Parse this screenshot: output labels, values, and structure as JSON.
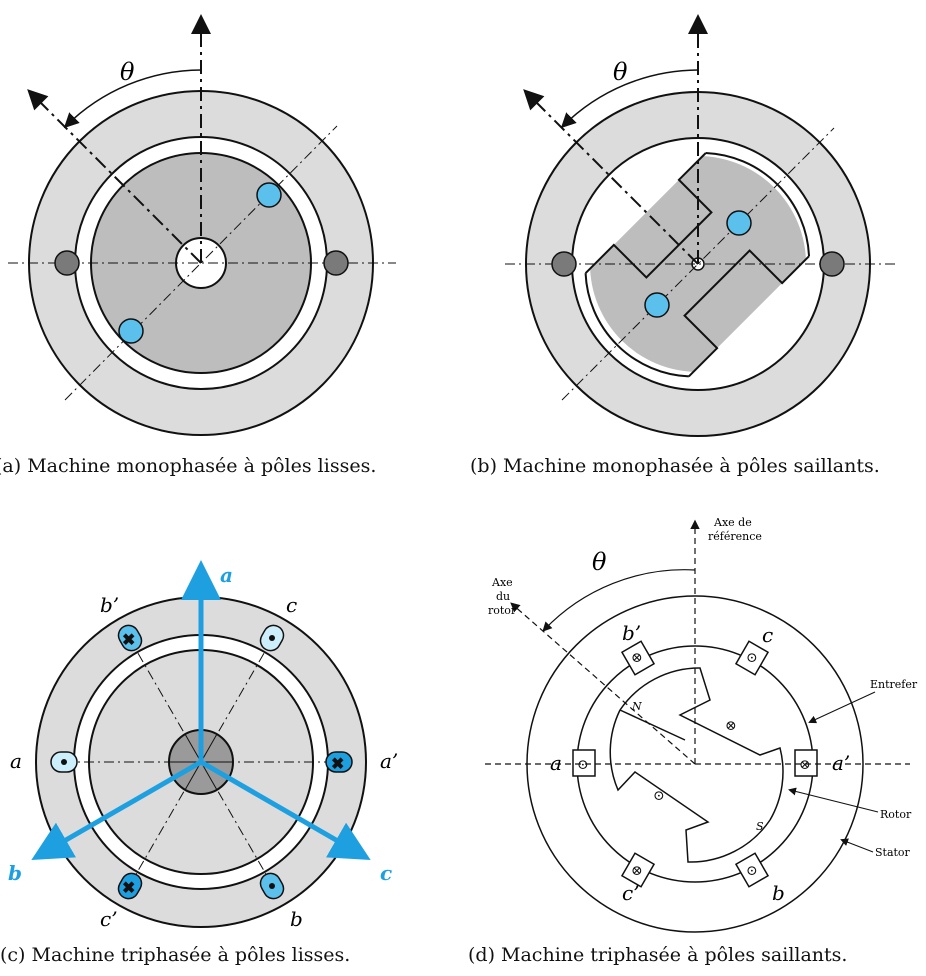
{
  "colors": {
    "stator_fill": "#dcdcdc",
    "rotor_fill": "#bdbdbd",
    "conductor_blue": "#5bc0eb",
    "conductor_gray": "#7a7a7a",
    "axis_blue": "#1ea0e0",
    "stroke": "#1a1a1a"
  },
  "panel_a": {
    "theta_label": "θ",
    "caption": "(a) Machine monophasée à pôles lisses."
  },
  "panel_b": {
    "theta_label": "θ",
    "caption": "(b) Machine monophasée à pôles saillants."
  },
  "panel_c": {
    "labels": {
      "a_axis": "a",
      "b_axis": "b",
      "c_axis": "c",
      "a": "a",
      "a_prime": "a’",
      "b_prime": "b’",
      "c": "c",
      "c_prime": "c’",
      "b": "b"
    },
    "caption": "(c) Machine triphasée à pôles lisses."
  },
  "panel_d": {
    "theta_label": "θ",
    "ref_axis_label_1": "Axe de",
    "ref_axis_label_2": "référence",
    "rotor_axis_label_1": "Axe",
    "rotor_axis_label_2": "du",
    "rotor_axis_label_3": "rotor",
    "entrefer": "Entrefer",
    "rotor": "Rotor",
    "stator": "Stator",
    "n_pole": "N",
    "s_pole": "S",
    "phase_labels": {
      "a": "a",
      "a_prime": "a’",
      "b_prime": "b’",
      "c": "c",
      "c_prime": "c’",
      "b": "b"
    },
    "caption": "(d) Machine triphasée à pôles saillants."
  }
}
